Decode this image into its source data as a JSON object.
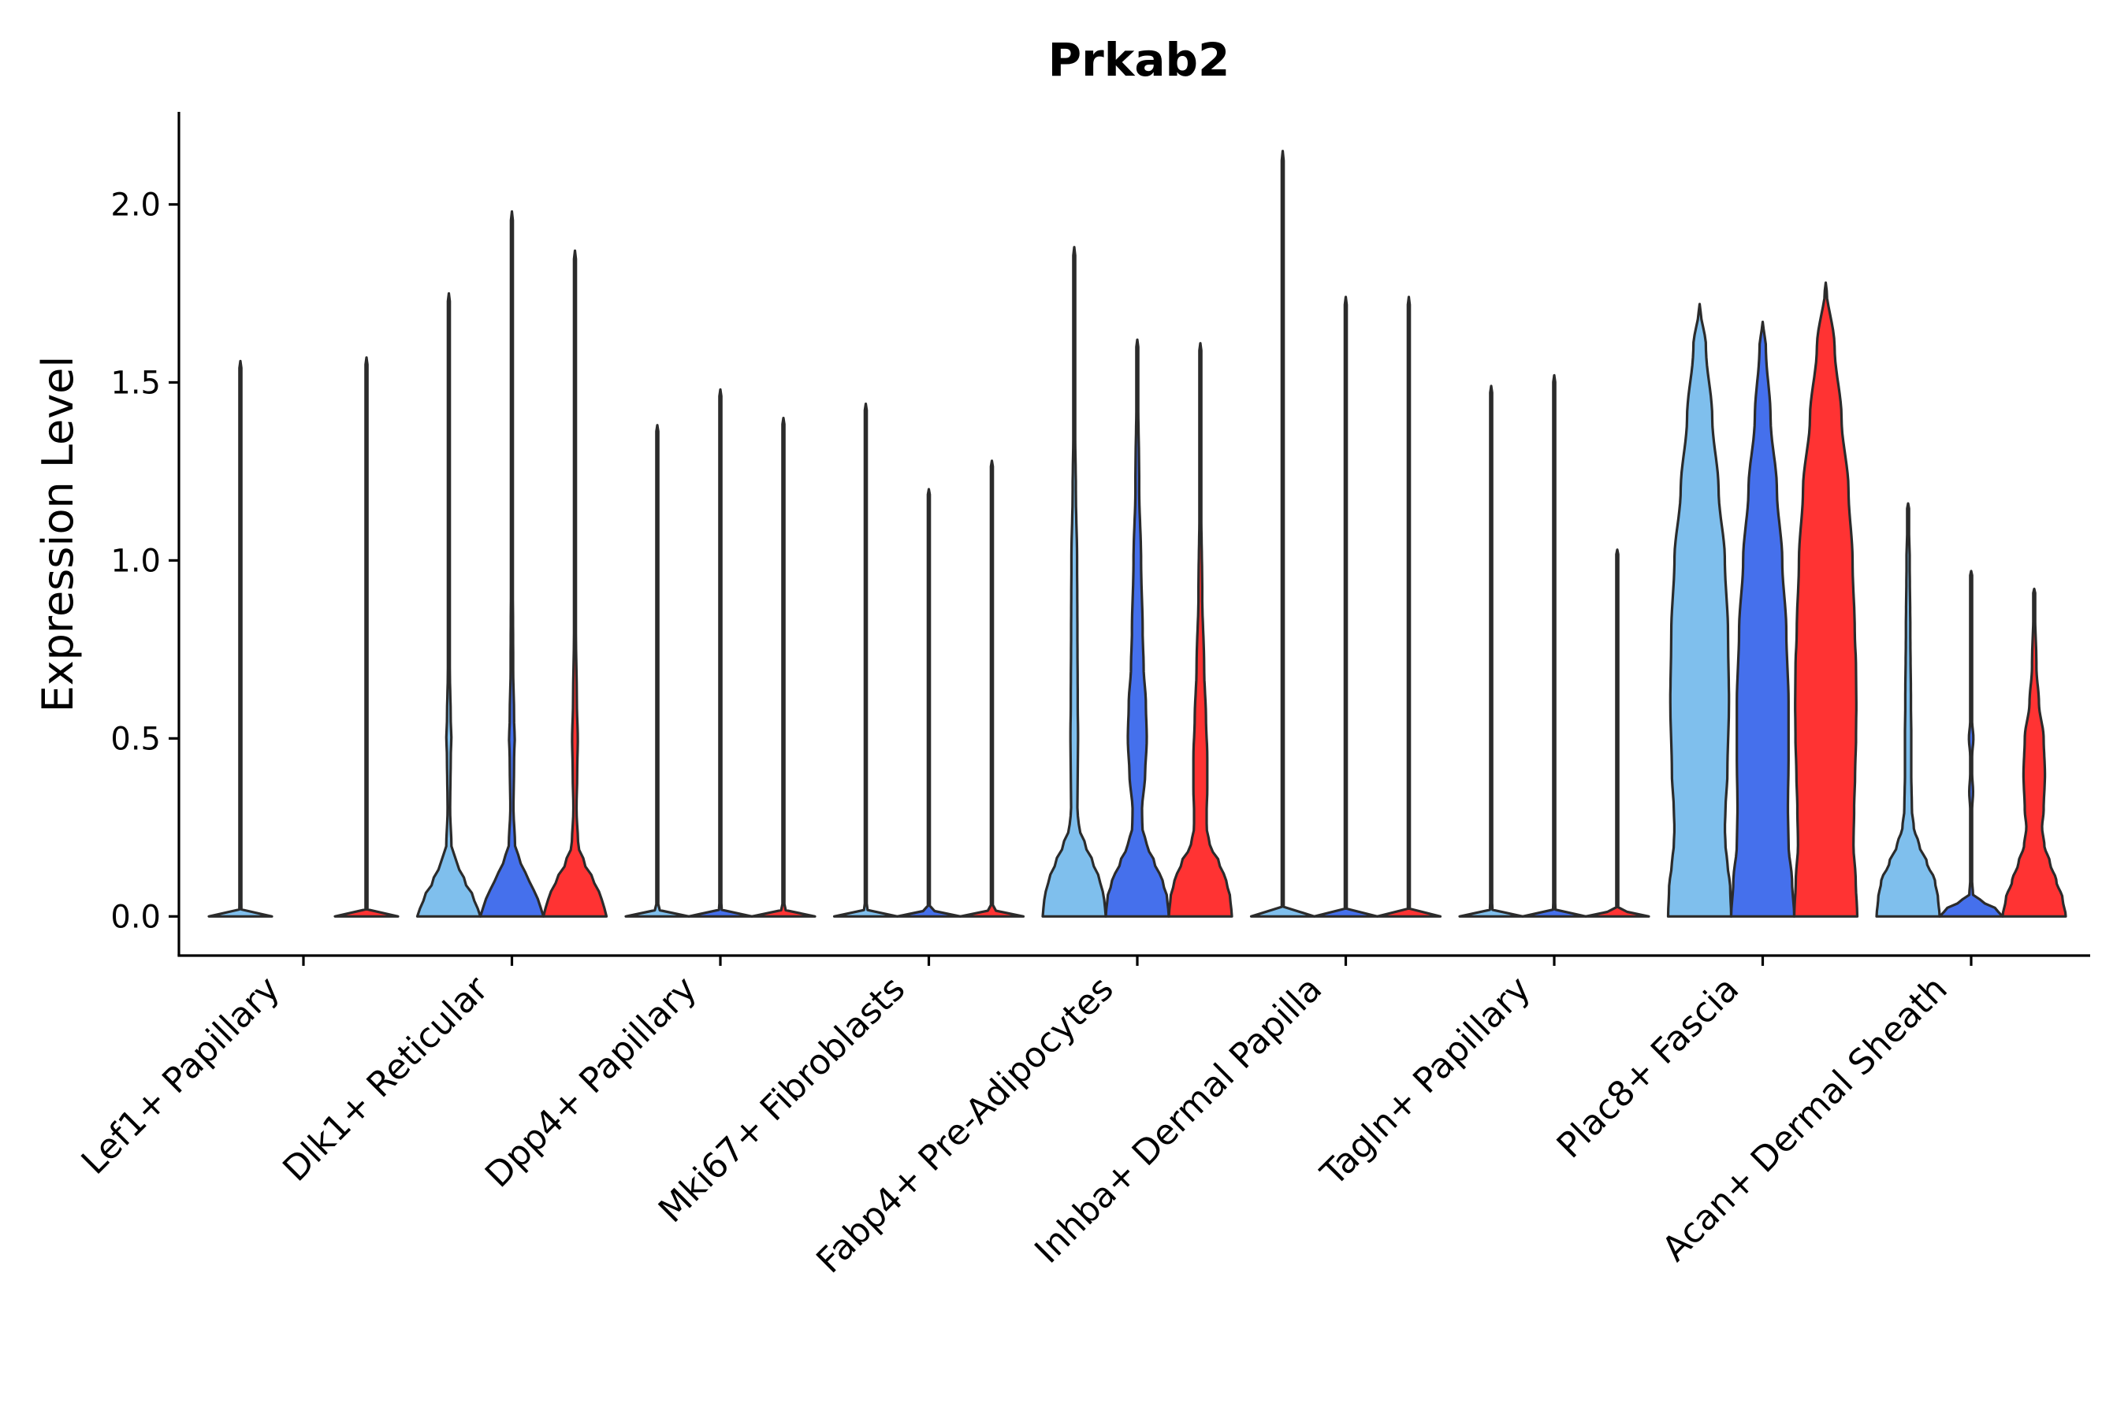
{
  "chart_data": {
    "type": "violin",
    "title": "Prkab2",
    "xlabel": "",
    "ylabel": "Expression Level",
    "ylim": [
      -0.11,
      2.26
    ],
    "yticks": [
      0.0,
      0.5,
      1.0,
      1.5,
      2.0
    ],
    "ytick_labels": [
      "0.0",
      "0.5",
      "1.0",
      "1.5",
      "2.0"
    ],
    "legend": "none",
    "groups_per_category": [
      "group1",
      "group2",
      "group3"
    ],
    "colors": {
      "group1": "#7fbfed",
      "group2": "#4570ec",
      "group3": "#ff3333"
    },
    "categories": [
      {
        "label": "Lef1+ Papillary",
        "violins": [
          {
            "group": "group1",
            "max": 1.56,
            "profile": [
              [
                0,
                1
              ],
              [
                0.02,
                0.03
              ],
              [
                1.56,
                0
              ]
            ]
          },
          {
            "group": "group3",
            "max": 1.57,
            "profile": [
              [
                0,
                1
              ],
              [
                0.02,
                0.03
              ],
              [
                1.57,
                0
              ]
            ]
          }
        ]
      },
      {
        "label": "Dlk1+ Reticular",
        "violins": [
          {
            "group": "group1",
            "max": 1.75,
            "profile": [
              [
                0,
                1
              ],
              [
                0.05,
                0.8
              ],
              [
                0.1,
                0.5
              ],
              [
                0.15,
                0.25
              ],
              [
                0.2,
                0.08
              ],
              [
                0.3,
                0.04
              ],
              [
                0.45,
                0.06
              ],
              [
                0.5,
                0.08
              ],
              [
                0.55,
                0.06
              ],
              [
                0.7,
                0.03
              ],
              [
                1.0,
                0.02
              ],
              [
                1.75,
                0
              ]
            ]
          },
          {
            "group": "group2",
            "max": 1.98,
            "profile": [
              [
                0,
                1
              ],
              [
                0.05,
                0.82
              ],
              [
                0.1,
                0.55
              ],
              [
                0.15,
                0.28
              ],
              [
                0.2,
                0.1
              ],
              [
                0.3,
                0.05
              ],
              [
                0.45,
                0.07
              ],
              [
                0.5,
                0.09
              ],
              [
                0.55,
                0.07
              ],
              [
                0.7,
                0.04
              ],
              [
                1.1,
                0.02
              ],
              [
                1.98,
                0
              ]
            ]
          },
          {
            "group": "group3",
            "max": 1.87,
            "profile": [
              [
                0,
                1
              ],
              [
                0.05,
                0.85
              ],
              [
                0.1,
                0.6
              ],
              [
                0.15,
                0.3
              ],
              [
                0.2,
                0.1
              ],
              [
                0.3,
                0.05
              ],
              [
                0.4,
                0.07
              ],
              [
                0.5,
                0.09
              ],
              [
                0.6,
                0.06
              ],
              [
                0.8,
                0.03
              ],
              [
                1.0,
                0.02
              ],
              [
                1.87,
                0
              ]
            ]
          }
        ]
      },
      {
        "label": "Dpp4+ Papillary",
        "violins": [
          {
            "group": "group1",
            "max": 1.38,
            "profile": [
              [
                0,
                1
              ],
              [
                0.02,
                0.03
              ],
              [
                1.38,
                0
              ]
            ]
          },
          {
            "group": "group2",
            "max": 1.48,
            "profile": [
              [
                0,
                1
              ],
              [
                0.02,
                0.03
              ],
              [
                1.48,
                0
              ]
            ]
          },
          {
            "group": "group3",
            "max": 1.4,
            "profile": [
              [
                0,
                1
              ],
              [
                0.02,
                0.03
              ],
              [
                1.4,
                0
              ]
            ]
          }
        ]
      },
      {
        "label": "Mki67+ Fibroblasts",
        "violins": [
          {
            "group": "group1",
            "max": 1.44,
            "profile": [
              [
                0,
                1
              ],
              [
                0.02,
                0.03
              ],
              [
                1.44,
                0
              ]
            ]
          },
          {
            "group": "group2",
            "max": 1.2,
            "profile": [
              [
                0,
                1
              ],
              [
                0.02,
                0.03
              ],
              [
                1.2,
                0
              ]
            ]
          },
          {
            "group": "group3",
            "max": 1.28,
            "profile": [
              [
                0,
                1
              ],
              [
                0.02,
                0.03
              ],
              [
                1.28,
                0
              ]
            ]
          }
        ]
      },
      {
        "label": "Fabp4+ Pre-Adipocytes",
        "violins": [
          {
            "group": "group1",
            "max": 1.88,
            "profile": [
              [
                0,
                1
              ],
              [
                0.05,
                0.95
              ],
              [
                0.1,
                0.82
              ],
              [
                0.15,
                0.6
              ],
              [
                0.2,
                0.35
              ],
              [
                0.25,
                0.15
              ],
              [
                0.3,
                0.1
              ],
              [
                0.4,
                0.11
              ],
              [
                0.5,
                0.12
              ],
              [
                0.6,
                0.11
              ],
              [
                0.8,
                0.1
              ],
              [
                1.0,
                0.09
              ],
              [
                1.2,
                0.05
              ],
              [
                1.4,
                0.02
              ],
              [
                1.88,
                0
              ]
            ]
          },
          {
            "group": "group2",
            "max": 1.62,
            "profile": [
              [
                0,
                1
              ],
              [
                0.05,
                0.95
              ],
              [
                0.1,
                0.8
              ],
              [
                0.15,
                0.55
              ],
              [
                0.2,
                0.3
              ],
              [
                0.25,
                0.16
              ],
              [
                0.3,
                0.15
              ],
              [
                0.4,
                0.25
              ],
              [
                0.5,
                0.3
              ],
              [
                0.6,
                0.27
              ],
              [
                0.7,
                0.2
              ],
              [
                0.8,
                0.17
              ],
              [
                1.0,
                0.12
              ],
              [
                1.2,
                0.06
              ],
              [
                1.62,
                0
              ]
            ]
          },
          {
            "group": "group3",
            "max": 1.61,
            "profile": [
              [
                0,
                1
              ],
              [
                0.05,
                0.95
              ],
              [
                0.1,
                0.82
              ],
              [
                0.15,
                0.6
              ],
              [
                0.2,
                0.3
              ],
              [
                0.25,
                0.2
              ],
              [
                0.3,
                0.2
              ],
              [
                0.35,
                0.22
              ],
              [
                0.45,
                0.22
              ],
              [
                0.55,
                0.18
              ],
              [
                0.7,
                0.12
              ],
              [
                0.9,
                0.06
              ],
              [
                1.2,
                0.02
              ],
              [
                1.61,
                0
              ]
            ]
          }
        ]
      },
      {
        "label": "Inhba+ Dermal Papilla",
        "violins": [
          {
            "group": "group1",
            "max": 2.15,
            "profile": [
              [
                0,
                1
              ],
              [
                0.02,
                0.03
              ],
              [
                2.15,
                0
              ]
            ]
          },
          {
            "group": "group2",
            "max": 1.74,
            "profile": [
              [
                0,
                1
              ],
              [
                0.02,
                0.03
              ],
              [
                1.74,
                0
              ]
            ]
          },
          {
            "group": "group3",
            "max": 1.74,
            "profile": [
              [
                0,
                1
              ],
              [
                0.02,
                0.03
              ],
              [
                1.74,
                0
              ]
            ]
          }
        ]
      },
      {
        "label": "Tagln+ Papillary",
        "violins": [
          {
            "group": "group1",
            "max": 1.49,
            "profile": [
              [
                0,
                1
              ],
              [
                0.02,
                0.03
              ],
              [
                1.49,
                0
              ]
            ]
          },
          {
            "group": "group2",
            "max": 1.52,
            "profile": [
              [
                0,
                1
              ],
              [
                0.02,
                0.03
              ],
              [
                1.52,
                0
              ]
            ]
          },
          {
            "group": "group3",
            "max": 1.03,
            "profile": [
              [
                0,
                1
              ],
              [
                0.02,
                0.03
              ],
              [
                1.03,
                0
              ]
            ]
          }
        ]
      },
      {
        "label": "Plac8+ Fascia",
        "violins": [
          {
            "group": "group1",
            "max": 1.72,
            "profile": [
              [
                0,
                1
              ],
              [
                0.08,
                0.97
              ],
              [
                0.15,
                0.88
              ],
              [
                0.2,
                0.82
              ],
              [
                0.25,
                0.8
              ],
              [
                0.3,
                0.82
              ],
              [
                0.4,
                0.88
              ],
              [
                0.6,
                0.93
              ],
              [
                0.8,
                0.9
              ],
              [
                1.0,
                0.8
              ],
              [
                1.2,
                0.6
              ],
              [
                1.4,
                0.4
              ],
              [
                1.6,
                0.2
              ],
              [
                1.72,
                0
              ]
            ]
          },
          {
            "group": "group2",
            "max": 1.67,
            "profile": [
              [
                0,
                1
              ],
              [
                0.1,
                0.93
              ],
              [
                0.2,
                0.82
              ],
              [
                0.3,
                0.8
              ],
              [
                0.45,
                0.82
              ],
              [
                0.6,
                0.82
              ],
              [
                0.8,
                0.75
              ],
              [
                1.0,
                0.62
              ],
              [
                1.2,
                0.45
              ],
              [
                1.4,
                0.25
              ],
              [
                1.6,
                0.1
              ],
              [
                1.67,
                0
              ]
            ]
          },
          {
            "group": "group3",
            "max": 1.78,
            "profile": [
              [
                0,
                1
              ],
              [
                0.1,
                0.95
              ],
              [
                0.2,
                0.88
              ],
              [
                0.3,
                0.9
              ],
              [
                0.4,
                0.93
              ],
              [
                0.5,
                0.96
              ],
              [
                0.6,
                0.97
              ],
              [
                0.7,
                0.96
              ],
              [
                0.8,
                0.92
              ],
              [
                1.0,
                0.85
              ],
              [
                1.2,
                0.72
              ],
              [
                1.4,
                0.5
              ],
              [
                1.6,
                0.28
              ],
              [
                1.78,
                0
              ]
            ]
          }
        ]
      },
      {
        "label": "Acan+ Dermal Sheath",
        "violins": [
          {
            "group": "group1",
            "max": 1.16,
            "profile": [
              [
                0,
                1
              ],
              [
                0.05,
                0.95
              ],
              [
                0.1,
                0.85
              ],
              [
                0.15,
                0.6
              ],
              [
                0.2,
                0.35
              ],
              [
                0.25,
                0.18
              ],
              [
                0.3,
                0.12
              ],
              [
                0.4,
                0.1
              ],
              [
                0.5,
                0.1
              ],
              [
                0.6,
                0.09
              ],
              [
                0.8,
                0.07
              ],
              [
                1.0,
                0.05
              ],
              [
                1.16,
                0
              ]
            ]
          },
          {
            "group": "group2",
            "max": 0.97,
            "profile": [
              [
                0,
                1
              ],
              [
                0.02,
                0.8
              ],
              [
                0.04,
                0.4
              ],
              [
                0.06,
                0.06
              ],
              [
                0.1,
                0.03
              ],
              [
                0.3,
                0.03
              ],
              [
                0.35,
                0.06
              ],
              [
                0.4,
                0.03
              ],
              [
                0.45,
                0.03
              ],
              [
                0.5,
                0.07
              ],
              [
                0.55,
                0.03
              ],
              [
                0.7,
                0.03
              ],
              [
                0.97,
                0
              ]
            ]
          },
          {
            "group": "group3",
            "max": 0.92,
            "profile": [
              [
                0,
                1
              ],
              [
                0.05,
                0.9
              ],
              [
                0.1,
                0.7
              ],
              [
                0.15,
                0.5
              ],
              [
                0.2,
                0.32
              ],
              [
                0.25,
                0.25
              ],
              [
                0.3,
                0.3
              ],
              [
                0.4,
                0.34
              ],
              [
                0.5,
                0.3
              ],
              [
                0.6,
                0.15
              ],
              [
                0.7,
                0.07
              ],
              [
                0.92,
                0
              ]
            ]
          }
        ]
      }
    ]
  }
}
